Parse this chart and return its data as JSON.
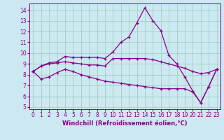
{
  "xlabel": "Windchill (Refroidissement éolien,°C)",
  "bg_color": "#cce8f0",
  "grid_color": "#99ccbb",
  "line_color": "#880088",
  "spine_color": "#880088",
  "xlim": [
    -0.5,
    23.5
  ],
  "ylim": [
    4.8,
    14.6
  ],
  "yticks": [
    5,
    6,
    7,
    8,
    9,
    10,
    11,
    12,
    13,
    14
  ],
  "xticks": [
    0,
    1,
    2,
    3,
    4,
    5,
    6,
    7,
    8,
    9,
    10,
    11,
    12,
    13,
    14,
    15,
    16,
    17,
    18,
    19,
    20,
    21,
    22,
    23
  ],
  "series1_x": [
    0,
    1,
    2,
    3,
    4,
    5,
    6,
    7,
    8,
    9,
    10,
    11,
    12,
    13,
    14,
    15,
    16,
    17,
    18,
    19,
    20,
    21,
    22,
    23
  ],
  "series1_y": [
    8.3,
    8.8,
    9.1,
    9.2,
    9.7,
    9.6,
    9.6,
    9.6,
    9.6,
    9.5,
    10.1,
    11.0,
    11.5,
    12.8,
    14.2,
    13.0,
    12.1,
    9.8,
    9.0,
    7.8,
    6.5,
    5.4,
    6.9,
    8.5
  ],
  "series2_x": [
    0,
    1,
    2,
    3,
    4,
    5,
    6,
    7,
    8,
    9,
    10,
    11,
    12,
    13,
    14,
    15,
    16,
    17,
    18,
    19,
    20,
    21,
    22,
    23
  ],
  "series2_y": [
    8.3,
    8.8,
    9.0,
    9.1,
    9.2,
    9.1,
    9.0,
    8.9,
    8.9,
    8.8,
    9.5,
    9.5,
    9.5,
    9.5,
    9.5,
    9.4,
    9.2,
    9.0,
    8.8,
    8.6,
    8.3,
    8.1,
    8.2,
    8.5
  ],
  "series3_x": [
    0,
    1,
    2,
    3,
    4,
    5,
    6,
    7,
    8,
    9,
    10,
    11,
    12,
    13,
    14,
    15,
    16,
    17,
    18,
    19,
    20,
    21,
    22,
    23
  ],
  "series3_y": [
    8.3,
    7.6,
    7.8,
    8.2,
    8.5,
    8.3,
    8.0,
    7.8,
    7.6,
    7.4,
    7.3,
    7.2,
    7.1,
    7.0,
    6.9,
    6.8,
    6.7,
    6.7,
    6.7,
    6.7,
    6.4,
    5.4,
    6.9,
    8.5
  ],
  "xlabel_fontsize": 6.0,
  "tick_fontsize": 5.5,
  "linewidth": 0.9,
  "markersize": 3.5
}
